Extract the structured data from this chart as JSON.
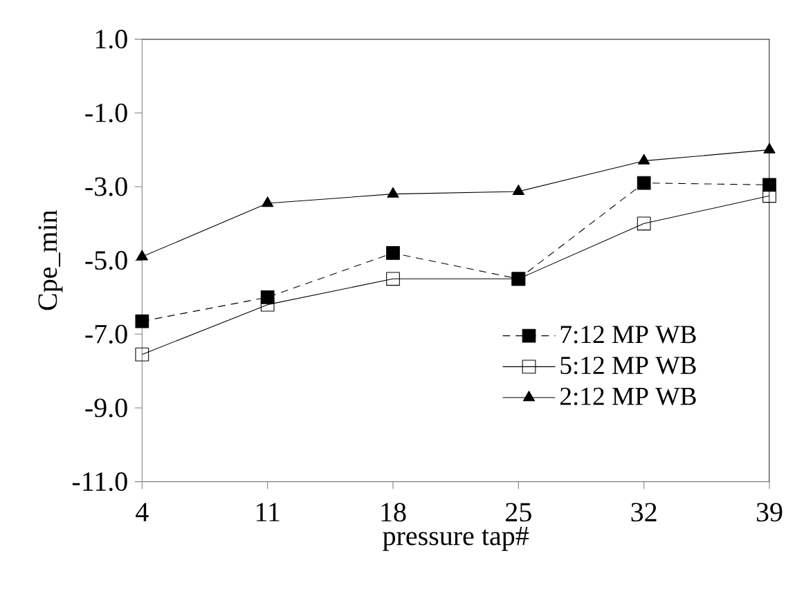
{
  "chart_data": {
    "type": "line",
    "xlabel": "pressure tap#",
    "ylabel": "Cpe_min",
    "x": [
      4,
      11,
      18,
      25,
      32,
      39
    ],
    "xlim": [
      4,
      39
    ],
    "xticks": [
      4,
      11,
      18,
      25,
      32,
      39
    ],
    "ylim": [
      -11,
      1
    ],
    "yticks": [
      {
        "value": -11,
        "label": "-11.0"
      },
      {
        "value": -9,
        "label": "-9.0"
      },
      {
        "value": -7,
        "label": "-7.0"
      },
      {
        "value": -5,
        "label": "-5.0"
      },
      {
        "value": -3,
        "label": "-3.0"
      },
      {
        "value": -1,
        "label": "-1.0"
      },
      {
        "value": 1,
        "label": "1.0"
      }
    ],
    "grid": false,
    "legend": "bottom right",
    "series": [
      {
        "name": "7:12 MP WB",
        "color": "#000000",
        "marker": "square",
        "line_style": "dashed",
        "values": [
          -6.65,
          -6.0,
          -4.8,
          -5.5,
          -2.9,
          -2.95
        ]
      },
      {
        "name": "5:12 MP WB",
        "color": "#000000",
        "marker": "square",
        "line_style": "solid",
        "values": [
          -7.55,
          -6.2,
          -5.5,
          -5.5,
          -4.0,
          -3.25
        ]
      },
      {
        "name": "2:12 MP WB",
        "color": "#000000",
        "marker": "triangle",
        "line_style": "solid",
        "values": [
          -4.9,
          -3.45,
          -3.2,
          -3.13,
          -2.3,
          -2.0
        ]
      }
    ]
  }
}
